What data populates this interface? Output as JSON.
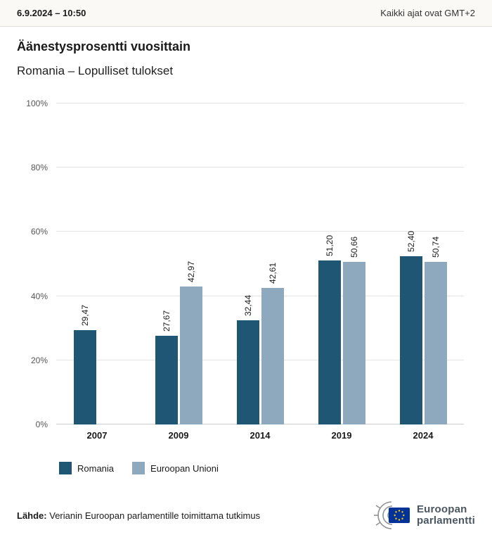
{
  "header": {
    "datetime": "6.9.2024 – 10:50",
    "timezone_note": "Kaikki ajat ovat GMT+2"
  },
  "title": "Äänestysprosentti vuosittain",
  "subtitle": "Romania – Lopulliset tulokset",
  "chart_data": {
    "type": "bar",
    "title": "Äänestysprosentti vuosittain",
    "subtitle": "Romania – Lopulliset tulokset",
    "categories": [
      "2007",
      "2009",
      "2014",
      "2019",
      "2024"
    ],
    "series": [
      {
        "name": "Romania",
        "color": "#1f5674",
        "values": [
          29.47,
          27.67,
          32.44,
          51.2,
          52.4
        ],
        "labels": [
          "29,47",
          "27,67",
          "32,44",
          "51,20",
          "52,40"
        ]
      },
      {
        "name": "Euroopan Unioni",
        "color": "#8ea8bd",
        "values": [
          null,
          42.97,
          42.61,
          50.66,
          50.74
        ],
        "labels": [
          "",
          "42,97",
          "42,61",
          "50,66",
          "50,74"
        ]
      }
    ],
    "ylim": [
      0,
      100
    ],
    "yticks": [
      0,
      20,
      40,
      60,
      80,
      100
    ],
    "ytick_labels": [
      "0%",
      "20%",
      "40%",
      "60%",
      "80%",
      "100%"
    ],
    "grid": true,
    "legend_position": "bottom"
  },
  "legend": {
    "items": [
      {
        "label": "Romania",
        "color": "#1f5674"
      },
      {
        "label": "Euroopan Unioni",
        "color": "#8ea8bd"
      }
    ]
  },
  "footer": {
    "source_label": "Lähde:",
    "source_text": " Verianin Euroopan parlamentille toimittama tutkimus"
  },
  "logo": {
    "line1": "Euroopan",
    "line2": "parlamentti",
    "flag_color": "#003399",
    "star_color": "#ffcc00"
  }
}
